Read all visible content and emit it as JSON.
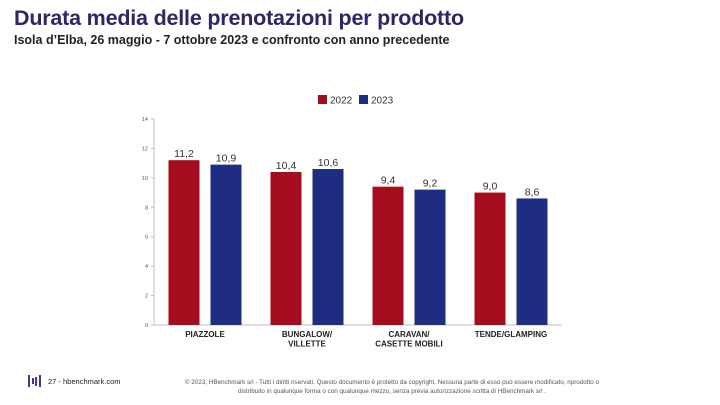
{
  "header": {
    "title": "Durata media delle prenotazioni per prodotto",
    "subtitle": "Isola d’Elba, 26 maggio - 7 ottobre 2023 e confronto con anno precedente"
  },
  "chart_data": {
    "type": "bar",
    "categories": [
      [
        "PIAZZOLE"
      ],
      [
        "BUNGALOW/",
        "VILLETTE"
      ],
      [
        "CARAVAN/",
        "CASETTE MOBILI"
      ],
      [
        "TENDE/GLAMPING"
      ]
    ],
    "series": [
      {
        "name": "2022",
        "color": "#a50d1f",
        "values": [
          11.2,
          10.4,
          9.4,
          9.0
        ],
        "labels": [
          "11,2",
          "10,4",
          "9,4",
          "9,0"
        ]
      },
      {
        "name": "2023",
        "color": "#1e2d82",
        "values": [
          10.9,
          10.6,
          9.2,
          8.6
        ],
        "labels": [
          "10,9",
          "10,6",
          "9,2",
          "8,6"
        ]
      }
    ],
    "yticks": [
      "0",
      "2",
      "4",
      "6",
      "8",
      "10",
      "12",
      "14"
    ],
    "ylim": [
      0,
      14
    ],
    "grid": false,
    "legend_position": "top-center"
  },
  "footer": {
    "page_ref": "27 - hbenchmark.com",
    "copyright_line1": "© 2023, HBenchmark srl - Tutti i diritti riservati. Questo documento è protetto da copyright. Nessuna parte di esso può essere modificato, riprodotto o",
    "copyright_line2": "distribuito in qualunque forma o con qualunque mezzo, senza previa autorizzazione scritta di HBenchmark srl ."
  }
}
